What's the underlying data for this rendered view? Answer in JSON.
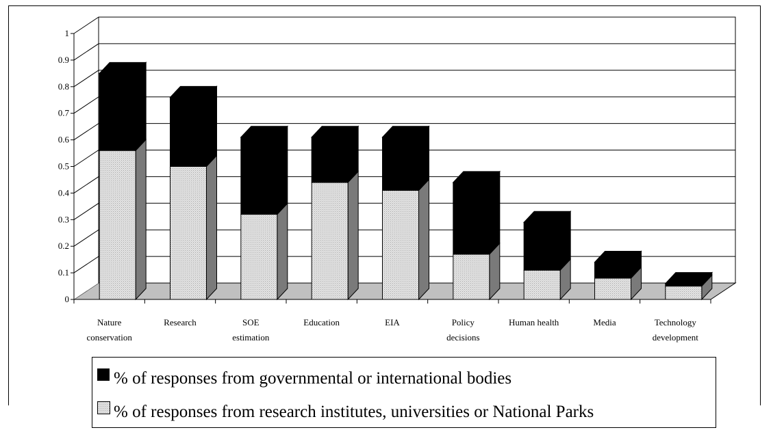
{
  "chart_data": {
    "type": "bar",
    "stacked": true,
    "style": "3d",
    "categories": [
      [
        "Nature",
        "conservation"
      ],
      [
        "Research"
      ],
      [
        "SOE",
        "estimation"
      ],
      [
        "Education"
      ],
      [
        "EIA"
      ],
      [
        "Policy",
        "decisions"
      ],
      [
        "Human health"
      ],
      [
        "Media"
      ],
      [
        "Technology",
        "development"
      ]
    ],
    "series": [
      {
        "name": "% of responses from research institutes, universities or National Parks",
        "color": "#e4e4e4",
        "values": [
          0.56,
          0.5,
          0.32,
          0.44,
          0.41,
          0.17,
          0.11,
          0.08,
          0.05
        ]
      },
      {
        "name": "% of responses from governmental or international bodies",
        "color": "#000000",
        "values": [
          0.29,
          0.26,
          0.29,
          0.17,
          0.2,
          0.27,
          0.18,
          0.06,
          0.01
        ]
      }
    ],
    "yticks": [
      "0",
      "0.1",
      "0.2",
      "0.3",
      "0.4",
      "0.5",
      "0.6",
      "0.7",
      "0.8",
      "0.9",
      "1"
    ],
    "ylim": [
      0,
      1
    ],
    "grid": true,
    "legend_position": "bottom",
    "title": "",
    "xlabel": "",
    "ylabel": ""
  }
}
